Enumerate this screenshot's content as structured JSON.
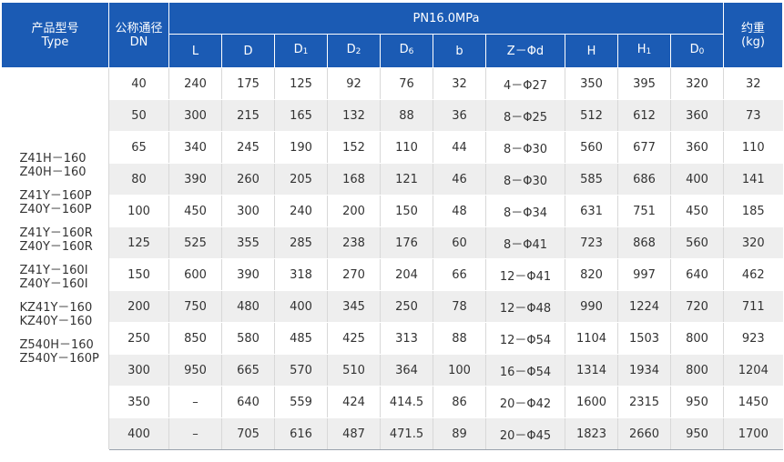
{
  "header": {
    "model_label_cn": "产品型号",
    "model_label_en": "Type",
    "dn_label_cn": "公称通径",
    "dn_label_en": "DN",
    "pressure_label": "PN16.0MPa",
    "weight_label_cn": "约重",
    "weight_label_en": "(kg)",
    "columns": [
      {
        "base": "L",
        "sub": ""
      },
      {
        "base": "D",
        "sub": ""
      },
      {
        "base": "D",
        "sub": "1"
      },
      {
        "base": "D",
        "sub": "2"
      },
      {
        "base": "D",
        "sub": "6"
      },
      {
        "base": "b",
        "sub": ""
      },
      {
        "base": "Z－Φd",
        "sub": ""
      },
      {
        "base": "H",
        "sub": ""
      },
      {
        "base": "H",
        "sub": "1"
      },
      {
        "base": "D",
        "sub": "0"
      }
    ]
  },
  "models": [
    [
      "Z41H－160",
      "Z40H－160"
    ],
    [
      "Z41Y－160P",
      "Z40Y－160P"
    ],
    [
      "Z41Y－160R",
      "Z40Y－160R"
    ],
    [
      "Z41Y－160I",
      "Z40Y－160I"
    ],
    [
      "KZ41Y－160",
      "KZ40Y－160"
    ],
    [
      "Z540H－160",
      "Z540Y－160P"
    ]
  ],
  "rows": [
    [
      "40",
      "240",
      "175",
      "125",
      "92",
      "76",
      "32",
      "4－Φ27",
      "350",
      "395",
      "320",
      "32"
    ],
    [
      "50",
      "300",
      "215",
      "165",
      "132",
      "88",
      "36",
      "8－Φ25",
      "512",
      "612",
      "360",
      "73"
    ],
    [
      "65",
      "340",
      "245",
      "190",
      "152",
      "110",
      "44",
      "8－Φ30",
      "560",
      "677",
      "360",
      "110"
    ],
    [
      "80",
      "390",
      "260",
      "205",
      "168",
      "121",
      "46",
      "8－Φ30",
      "585",
      "686",
      "400",
      "141"
    ],
    [
      "100",
      "450",
      "300",
      "240",
      "200",
      "150",
      "48",
      "8－Φ34",
      "631",
      "751",
      "450",
      "185"
    ],
    [
      "125",
      "525",
      "355",
      "285",
      "238",
      "176",
      "60",
      "8－Φ41",
      "723",
      "868",
      "560",
      "320"
    ],
    [
      "150",
      "600",
      "390",
      "318",
      "270",
      "204",
      "66",
      "12－Φ41",
      "820",
      "997",
      "640",
      "462"
    ],
    [
      "200",
      "750",
      "480",
      "400",
      "345",
      "250",
      "78",
      "12－Φ48",
      "990",
      "1224",
      "720",
      "711"
    ],
    [
      "250",
      "850",
      "580",
      "485",
      "425",
      "313",
      "88",
      "12－Φ54",
      "1104",
      "1503",
      "800",
      "923"
    ],
    [
      "300",
      "950",
      "665",
      "570",
      "510",
      "364",
      "100",
      "16－Φ54",
      "1314",
      "1934",
      "800",
      "1204"
    ],
    [
      "350",
      "–",
      "640",
      "559",
      "424",
      "414.5",
      "86",
      "20－Φ42",
      "1600",
      "2315",
      "950",
      "1450"
    ],
    [
      "400",
      "–",
      "705",
      "616",
      "487",
      "471.5",
      "89",
      "20－Φ45",
      "1823",
      "2660",
      "950",
      "1700"
    ]
  ]
}
